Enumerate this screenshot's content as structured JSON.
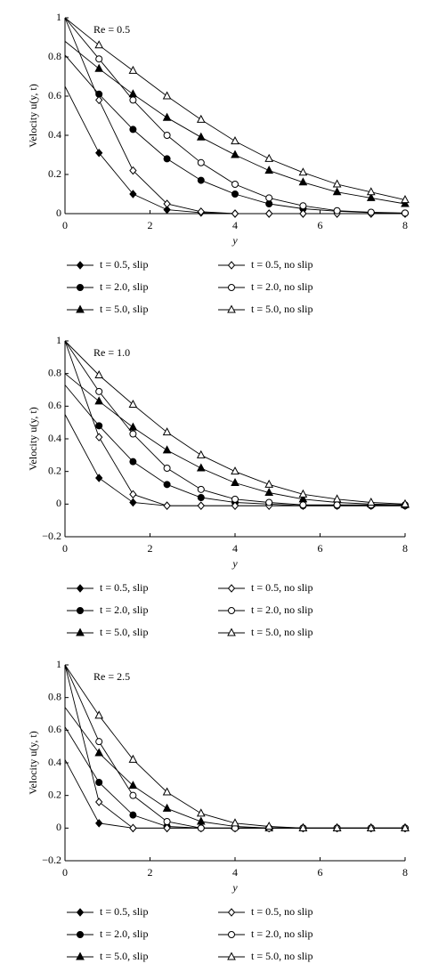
{
  "chart_data": [
    {
      "type": "line",
      "annotation": "Re = 0.5",
      "x_label": "y",
      "y_label": "Velocity u(y, t)",
      "x": [
        0,
        0.8,
        1.6,
        2.4,
        3.2,
        4.0,
        4.8,
        5.6,
        6.4,
        7.2,
        8.0
      ],
      "xlim": [
        0,
        8
      ],
      "xticks": [
        0,
        2,
        4,
        6,
        8
      ],
      "ylim": [
        0,
        1
      ],
      "yticks": [
        0,
        0.2,
        0.4,
        0.6,
        0.8,
        1
      ],
      "series": [
        {
          "name": "t = 0.5, slip",
          "color": "#000000",
          "marker": "diamond",
          "filled": true,
          "values": [
            0.65,
            0.31,
            0.1,
            0.02,
            0.005,
            0,
            0,
            0,
            0,
            0,
            0
          ]
        },
        {
          "name": "t = 2.0, slip",
          "color": "#000000",
          "marker": "circle",
          "filled": true,
          "values": [
            0.81,
            0.61,
            0.43,
            0.28,
            0.17,
            0.1,
            0.05,
            0.025,
            0.012,
            0.005,
            0.002
          ]
        },
        {
          "name": "t = 5.0, slip",
          "color": "#000000",
          "marker": "triangle",
          "filled": true,
          "values": [
            0.88,
            0.74,
            0.61,
            0.49,
            0.39,
            0.3,
            0.22,
            0.16,
            0.11,
            0.08,
            0.05
          ]
        },
        {
          "name": "t = 0.5, no slip",
          "color": "#000000",
          "marker": "diamond",
          "filled": false,
          "values": [
            1,
            0.58,
            0.22,
            0.05,
            0.01,
            0,
            0,
            0,
            0,
            0,
            0
          ]
        },
        {
          "name": "t = 2.0, no slip",
          "color": "#000000",
          "marker": "circle",
          "filled": false,
          "values": [
            1,
            0.79,
            0.58,
            0.4,
            0.26,
            0.15,
            0.08,
            0.04,
            0.015,
            0.007,
            0.003
          ]
        },
        {
          "name": "t = 5.0, no slip",
          "color": "#000000",
          "marker": "triangle",
          "filled": false,
          "values": [
            1,
            0.86,
            0.73,
            0.6,
            0.48,
            0.37,
            0.28,
            0.21,
            0.15,
            0.11,
            0.07
          ]
        }
      ]
    },
    {
      "type": "line",
      "annotation": "Re = 1.0",
      "x_label": "y",
      "y_label": "Velocity u(y, t)",
      "x": [
        0,
        0.8,
        1.6,
        2.4,
        3.2,
        4.0,
        4.8,
        5.6,
        6.4,
        7.2,
        8.0
      ],
      "xlim": [
        0,
        8
      ],
      "xticks": [
        0,
        2,
        4,
        6,
        8
      ],
      "ylim": [
        -0.2,
        1
      ],
      "yticks": [
        {
          "value": -0.2,
          "label": "−0.2"
        },
        0,
        0.2,
        0.4,
        0.6,
        0.8,
        1
      ],
      "series": [
        {
          "name": "t = 0.5, slip",
          "color": "#000000",
          "marker": "diamond",
          "filled": true,
          "values": [
            0.55,
            0.16,
            0.01,
            -0.01,
            -0.01,
            -0.01,
            -0.01,
            -0.01,
            -0.01,
            -0.01,
            -0.01
          ]
        },
        {
          "name": "t = 2.0, slip",
          "color": "#000000",
          "marker": "circle",
          "filled": true,
          "values": [
            0.73,
            0.48,
            0.26,
            0.12,
            0.04,
            0.01,
            0,
            -0.01,
            -0.01,
            -0.01,
            -0.01
          ]
        },
        {
          "name": "t = 5.0, slip",
          "color": "#000000",
          "marker": "triangle",
          "filled": true,
          "values": [
            0.8,
            0.63,
            0.47,
            0.33,
            0.22,
            0.13,
            0.07,
            0.03,
            0.01,
            0,
            -0.005
          ]
        },
        {
          "name": "t = 0.5, no slip",
          "color": "#000000",
          "marker": "diamond",
          "filled": false,
          "values": [
            1,
            0.41,
            0.06,
            -0.01,
            -0.01,
            -0.01,
            -0.01,
            -0.01,
            -0.01,
            -0.01,
            -0.01
          ]
        },
        {
          "name": "t = 2.0, no slip",
          "color": "#000000",
          "marker": "circle",
          "filled": false,
          "values": [
            1,
            0.69,
            0.43,
            0.22,
            0.09,
            0.03,
            0.01,
            -0.005,
            -0.005,
            -0.005,
            -0.005
          ]
        },
        {
          "name": "t = 5.0, no slip",
          "color": "#000000",
          "marker": "triangle",
          "filled": false,
          "values": [
            1,
            0.79,
            0.61,
            0.44,
            0.3,
            0.2,
            0.12,
            0.06,
            0.03,
            0.01,
            0
          ]
        }
      ]
    },
    {
      "type": "line",
      "annotation": "Re = 2.5",
      "x_label": "y",
      "y_label": "Velocity u(y, t)",
      "x": [
        0,
        0.8,
        1.6,
        2.4,
        3.2,
        4.0,
        4.8,
        5.6,
        6.4,
        7.2,
        8.0
      ],
      "xlim": [
        0,
        8
      ],
      "xticks": [
        0,
        2,
        4,
        6,
        8
      ],
      "ylim": [
        -0.2,
        1
      ],
      "yticks": [
        {
          "value": -0.2,
          "label": "−0.2"
        },
        0,
        0.2,
        0.4,
        0.6,
        0.8,
        1
      ],
      "series": [
        {
          "name": "t = 0.5, slip",
          "color": "#000000",
          "marker": "diamond",
          "filled": true,
          "values": [
            0.42,
            0.03,
            0,
            0,
            0,
            0,
            0,
            0,
            0,
            0,
            0
          ]
        },
        {
          "name": "t = 2.0, slip",
          "color": "#000000",
          "marker": "circle",
          "filled": true,
          "values": [
            0.62,
            0.28,
            0.08,
            0.01,
            0,
            0,
            0,
            0,
            0,
            0,
            0
          ]
        },
        {
          "name": "t = 5.0, slip",
          "color": "#000000",
          "marker": "triangle",
          "filled": true,
          "values": [
            0.74,
            0.46,
            0.26,
            0.12,
            0.04,
            0.01,
            0,
            0,
            0,
            0,
            0
          ]
        },
        {
          "name": "t = 0.5, no slip",
          "color": "#000000",
          "marker": "diamond",
          "filled": false,
          "values": [
            1,
            0.16,
            0,
            0,
            0,
            0,
            0,
            0,
            0,
            0,
            0
          ]
        },
        {
          "name": "t = 2.0, no slip",
          "color": "#000000",
          "marker": "circle",
          "filled": false,
          "values": [
            1,
            0.53,
            0.2,
            0.04,
            0,
            0,
            0,
            0,
            0,
            0,
            0
          ]
        },
        {
          "name": "t = 5.0, no slip",
          "color": "#000000",
          "marker": "triangle",
          "filled": false,
          "values": [
            1,
            0.69,
            0.42,
            0.22,
            0.09,
            0.03,
            0.01,
            0,
            0,
            0,
            0
          ]
        }
      ]
    }
  ]
}
